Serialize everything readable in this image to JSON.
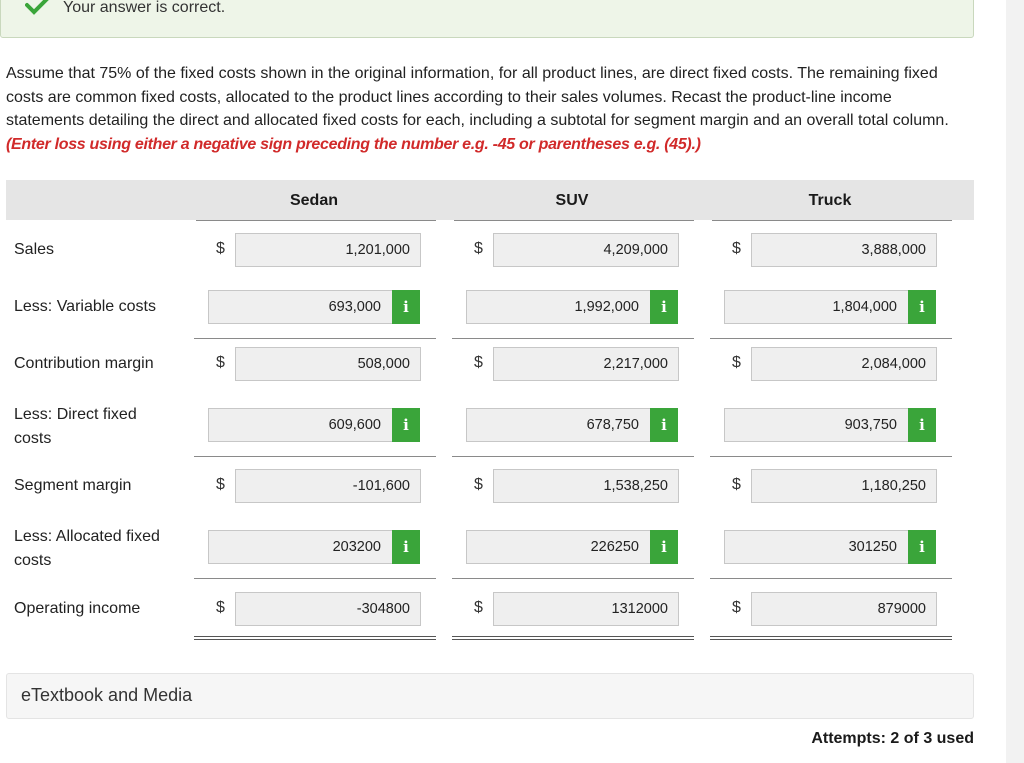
{
  "banner": {
    "message": "Your answer is correct.",
    "icon": "check-icon"
  },
  "question": {
    "text": "Assume that 75% of the fixed costs shown in the original information, for all product lines, are direct fixed costs. The remaining fixed costs are common fixed costs, allocated to the product lines according to their sales volumes. Recast the product-line income statements detailing the direct and allocated fixed costs for each, including a subtotal for segment margin and an overall total column.",
    "note": "(Enter loss using either a negative sign preceding the number e.g. -45 or parentheses e.g. (45).)"
  },
  "columns": [
    "Sedan",
    "SUV",
    "Truck"
  ],
  "rows": [
    {
      "label": "Sales",
      "currency": true,
      "info": false,
      "values": [
        "1,201,000",
        "4,209,000",
        "3,888,000"
      ]
    },
    {
      "label": "Less: Variable costs",
      "currency": false,
      "info": true,
      "values": [
        "693,000",
        "1,992,000",
        "1,804,000"
      ]
    },
    {
      "label": "Contribution margin",
      "currency": true,
      "info": false,
      "values": [
        "508,000",
        "2,217,000",
        "2,084,000"
      ]
    },
    {
      "label": "Less: Direct fixed costs",
      "currency": false,
      "info": true,
      "values": [
        "609,600",
        "678,750",
        "903,750"
      ]
    },
    {
      "label": "Segment margin",
      "currency": true,
      "info": false,
      "values": [
        "-101,600",
        "1,538,250",
        "1,180,250"
      ]
    },
    {
      "label": "Less: Allocated fixed costs",
      "currency": false,
      "info": true,
      "values": [
        "203200",
        "226250",
        "301250"
      ]
    },
    {
      "label": "Operating income",
      "currency": true,
      "info": false,
      "values": [
        "-304800",
        "1312000",
        "879000"
      ]
    }
  ],
  "currency_symbol": "$",
  "info_label": "i",
  "etextbook": "eTextbook and Media",
  "attempts": "Attempts: 2 of 3 used",
  "colors": {
    "success_bg": "#eef5e8",
    "check": "#3aa53a",
    "note_red": "#d12a2a",
    "info_green": "#3aa53a"
  }
}
